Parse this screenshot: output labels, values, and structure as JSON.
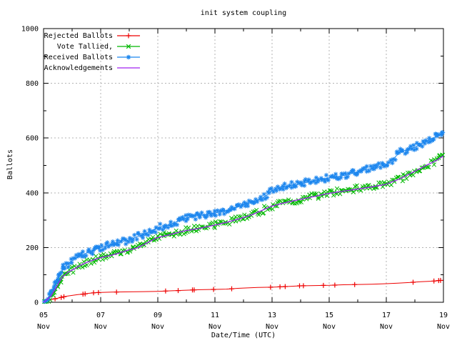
{
  "title": "init system coupling",
  "x_axis": {
    "label": "Date/Time (UTC)",
    "range_days": [
      0,
      14
    ],
    "major_ticks": [
      {
        "offset_days": 0,
        "day": "05",
        "month": "Nov"
      },
      {
        "offset_days": 2,
        "day": "07",
        "month": "Nov"
      },
      {
        "offset_days": 4,
        "day": "09",
        "month": "Nov"
      },
      {
        "offset_days": 6,
        "day": "11",
        "month": "Nov"
      },
      {
        "offset_days": 8,
        "day": "13",
        "month": "Nov"
      },
      {
        "offset_days": 10,
        "day": "15",
        "month": "Nov"
      },
      {
        "offset_days": 12,
        "day": "17",
        "month": "Nov"
      },
      {
        "offset_days": 14,
        "day": "19",
        "month": "Nov"
      }
    ],
    "minor_tick_offsets": [
      1,
      3,
      5,
      7,
      9,
      11,
      13
    ]
  },
  "y_axis": {
    "label": "Ballots",
    "min": 0,
    "max": 1000,
    "major_ticks": [
      0,
      200,
      400,
      600,
      800,
      1000
    ],
    "minor_ticks": [
      100,
      300,
      500,
      700,
      900
    ]
  },
  "legend": [
    {
      "label": "Rejected Ballots",
      "color": "#ee0000",
      "marker": "plus"
    },
    {
      "label": "Vote Tallied,",
      "color": "#00b800",
      "marker": "cross"
    },
    {
      "label": "Received Ballots",
      "color": "#1c86ee",
      "marker": "asterisk"
    },
    {
      "label": "Acknowledgements",
      "color": "#a020f0",
      "marker": "none"
    }
  ],
  "colors": {
    "background": "#ffffff",
    "axis": "#000000",
    "grid": "#b3b3b3",
    "text": "#000000"
  },
  "chart_data": {
    "type": "line",
    "title": "init system coupling",
    "xlabel": "Date/Time (UTC)",
    "ylabel": "Ballots",
    "ylim": [
      0,
      1000
    ],
    "xlim_days_since_05_nov_utc": [
      0,
      14
    ],
    "grid": true,
    "legend_position": "top-left-inside",
    "series": [
      {
        "name": "Rejected Ballots",
        "color": "#ee0000",
        "marker": "plus",
        "render": "sparse",
        "points": [
          [
            0,
            0
          ],
          [
            0.1,
            4
          ],
          [
            0.25,
            9
          ],
          [
            0.4,
            13
          ],
          [
            0.55,
            16
          ],
          [
            0.7,
            20
          ],
          [
            0.85,
            23
          ],
          [
            1.0,
            25
          ],
          [
            1.2,
            28
          ],
          [
            1.4,
            30
          ],
          [
            1.6,
            33
          ],
          [
            1.8,
            35
          ],
          [
            2.0,
            36
          ],
          [
            2.4,
            37
          ],
          [
            3.0,
            38
          ],
          [
            3.5,
            39
          ],
          [
            4.0,
            40
          ],
          [
            4.5,
            42
          ],
          [
            5.0,
            44
          ],
          [
            5.5,
            46
          ],
          [
            6.0,
            47
          ],
          [
            6.4,
            48
          ],
          [
            6.8,
            51
          ],
          [
            7.0,
            52
          ],
          [
            7.5,
            54
          ],
          [
            8.0,
            55
          ],
          [
            8.4,
            57
          ],
          [
            8.8,
            59
          ],
          [
            9.0,
            60
          ],
          [
            9.5,
            61
          ],
          [
            10.0,
            62
          ],
          [
            10.5,
            64
          ],
          [
            11.0,
            65
          ],
          [
            11.5,
            66
          ],
          [
            12.0,
            68
          ],
          [
            12.4,
            70
          ],
          [
            12.8,
            72
          ],
          [
            13.2,
            75
          ],
          [
            13.6,
            77
          ],
          [
            13.9,
            80
          ]
        ]
      },
      {
        "name": "Vote Tallied,",
        "color": "#00b800",
        "marker": "cross",
        "render": "dense",
        "points": [
          [
            0,
            0
          ],
          [
            0.15,
            10
          ],
          [
            0.3,
            25
          ],
          [
            0.5,
            58
          ],
          [
            0.7,
            95
          ],
          [
            0.9,
            112
          ],
          [
            1.1,
            122
          ],
          [
            1.3,
            135
          ],
          [
            1.5,
            145
          ],
          [
            1.75,
            155
          ],
          [
            2.0,
            166
          ],
          [
            2.5,
            177
          ],
          [
            3.0,
            192
          ],
          [
            3.3,
            200
          ],
          [
            3.6,
            215
          ],
          [
            4.0,
            237
          ],
          [
            4.5,
            250
          ],
          [
            5.0,
            263
          ],
          [
            5.5,
            272
          ],
          [
            6.0,
            283
          ],
          [
            6.5,
            295
          ],
          [
            7.0,
            310
          ],
          [
            7.3,
            320
          ],
          [
            7.6,
            333
          ],
          [
            8.0,
            352
          ],
          [
            8.5,
            366
          ],
          [
            9.0,
            377
          ],
          [
            9.5,
            388
          ],
          [
            10.0,
            399
          ],
          [
            10.5,
            407
          ],
          [
            11.0,
            415
          ],
          [
            11.5,
            423
          ],
          [
            12.0,
            432
          ],
          [
            12.5,
            452
          ],
          [
            13.0,
            478
          ],
          [
            13.5,
            505
          ],
          [
            13.8,
            520
          ],
          [
            14.0,
            538
          ]
        ]
      },
      {
        "name": "Received Ballots",
        "color": "#1c86ee",
        "marker": "asterisk",
        "render": "dense",
        "points": [
          [
            0,
            0
          ],
          [
            0.15,
            15
          ],
          [
            0.3,
            42
          ],
          [
            0.5,
            85
          ],
          [
            0.7,
            125
          ],
          [
            0.9,
            145
          ],
          [
            1.1,
            158
          ],
          [
            1.3,
            170
          ],
          [
            1.5,
            180
          ],
          [
            1.75,
            190
          ],
          [
            2.0,
            200
          ],
          [
            2.5,
            215
          ],
          [
            3.0,
            228
          ],
          [
            3.5,
            248
          ],
          [
            4.0,
            272
          ],
          [
            4.5,
            287
          ],
          [
            5.0,
            308
          ],
          [
            5.5,
            318
          ],
          [
            6.0,
            326
          ],
          [
            6.5,
            338
          ],
          [
            7.0,
            356
          ],
          [
            7.3,
            366
          ],
          [
            7.6,
            376
          ],
          [
            7.8,
            390
          ],
          [
            8.0,
            408
          ],
          [
            8.3,
            419
          ],
          [
            8.6,
            426
          ],
          [
            9.0,
            433
          ],
          [
            9.5,
            445
          ],
          [
            10.0,
            455
          ],
          [
            10.5,
            463
          ],
          [
            11.0,
            477
          ],
          [
            11.5,
            490
          ],
          [
            12.0,
            504
          ],
          [
            12.2,
            520
          ],
          [
            12.5,
            550
          ],
          [
            13.0,
            566
          ],
          [
            13.5,
            594
          ],
          [
            13.8,
            608
          ],
          [
            14.0,
            620
          ]
        ]
      },
      {
        "name": "Acknowledgements",
        "color": "#a020f0",
        "marker": "none",
        "render": "line",
        "points": [
          [
            0,
            0
          ],
          [
            0.1,
            8
          ],
          [
            0.25,
            22
          ],
          [
            0.45,
            55
          ],
          [
            0.65,
            92
          ],
          [
            0.85,
            110
          ],
          [
            1.05,
            120
          ],
          [
            1.25,
            133
          ],
          [
            1.45,
            143
          ],
          [
            1.7,
            153
          ],
          [
            1.95,
            162
          ],
          [
            2.45,
            174
          ],
          [
            2.95,
            190
          ],
          [
            3.25,
            198
          ],
          [
            3.55,
            213
          ],
          [
            3.95,
            235
          ],
          [
            4.45,
            248
          ],
          [
            4.95,
            261
          ],
          [
            5.45,
            270
          ],
          [
            5.95,
            281
          ],
          [
            6.45,
            293
          ],
          [
            6.95,
            308
          ],
          [
            7.25,
            318
          ],
          [
            7.55,
            331
          ],
          [
            7.95,
            350
          ],
          [
            8.45,
            364
          ],
          [
            8.95,
            375
          ],
          [
            9.45,
            386
          ],
          [
            9.95,
            397
          ],
          [
            10.45,
            405
          ],
          [
            10.95,
            413
          ],
          [
            11.45,
            421
          ],
          [
            11.95,
            430
          ],
          [
            12.45,
            450
          ],
          [
            12.95,
            476
          ],
          [
            13.45,
            503
          ],
          [
            13.75,
            518
          ],
          [
            14.0,
            535
          ]
        ]
      }
    ]
  }
}
